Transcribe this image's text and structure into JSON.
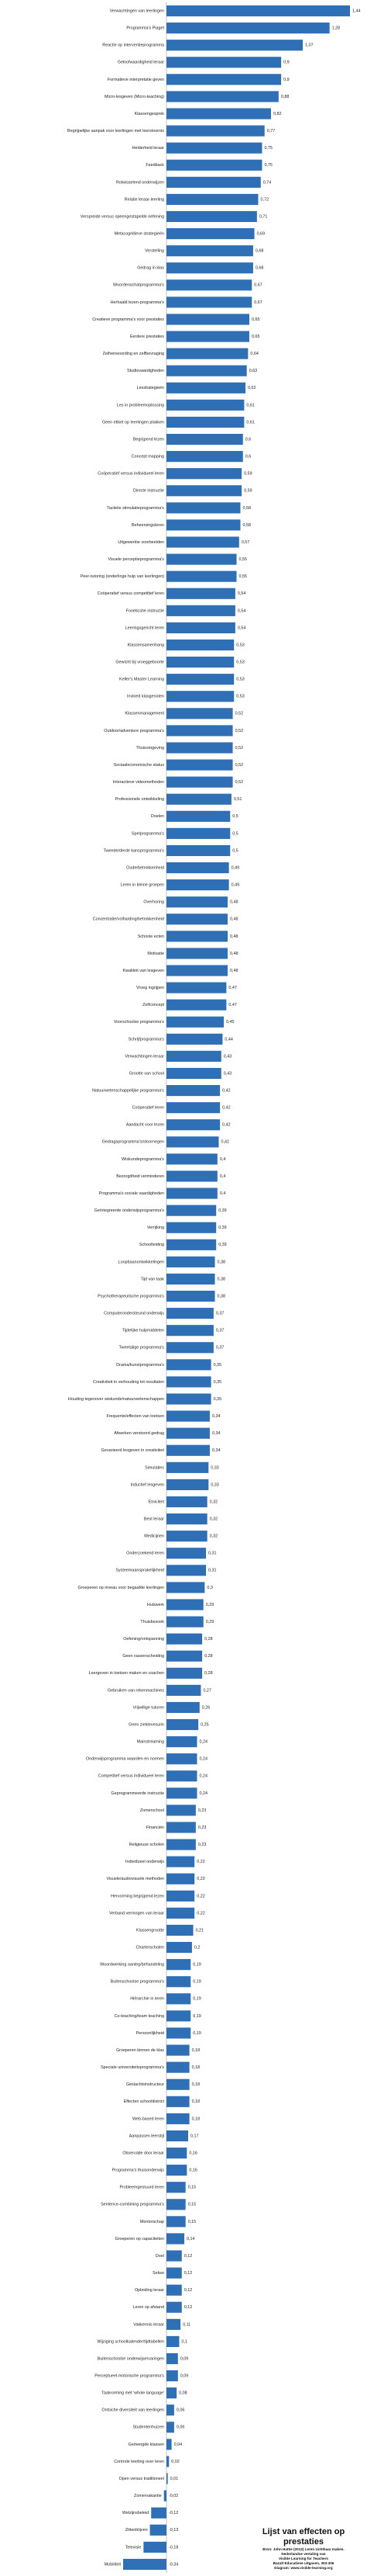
{
  "chart_data": {
    "type": "bar",
    "orientation": "horizontal",
    "categories": [
      "Verwachtingen van leerlingen",
      "Programma's Piaget",
      "Reactie op interventieprogramma",
      "Geloofwaardigheid leraar",
      "Formatieve interpretatie geven",
      "Micro-lesgeven (Micro-teaching)",
      "Klassengesprek",
      "Begrijpelijke aanpak voor leerlingen met leerstoornis",
      "Helderheid leraar",
      "Feedback",
      "Rolwisselend onderwijzen",
      "Relatie leraar-leerling",
      "Verspreide versus opeengestapelde oefening",
      "Metacognitieve strategieën",
      "Verstelling",
      "Gedrag in klas",
      "Woordenschatprogramma's",
      "Herhaald lezen-programma's",
      "Creatieve programma's voor prestaties",
      "Eerdere prestaties",
      "Zelfverwoording en zelfbevraging",
      "Studievaardigheden",
      "Lesstrategieën",
      "Les in probleemoplossing",
      "Geen etiket op leerlingen plakken",
      "Begrijpend lezen",
      "Concept mapping",
      "Coöperatief versus individueel leren",
      "Directe instructie",
      "Tactiele stimulatieprogramma's",
      "Beheersingsleren",
      "Uitgewerkte voorbeelden",
      "Visuele perceptieprogramma's",
      "Peer-tutoring (onderlinge hulp van leerlingen)",
      "Coöperatief versus competitief leren",
      "Foneticshe instructie",
      "Leeringsgericht leren",
      "Klassensamenhang",
      "Gewicht bij vroeggeboorte",
      "Keller's Master Learning",
      "Invloed klasgenoten",
      "Klassenmanagement",
      "Outdoor/adventure programma's",
      "Thuisomgeving",
      "Sociaaleconomische status",
      "Interactieve videomethoden",
      "Professionele ontwikkeling",
      "Doelen",
      "Spelprogramma's",
      "Tweede/derde kansprogramma's",
      "Ouderbetrokkenheid",
      "Leren in kleine groepen",
      "Overhoring",
      "Concentratie/volharding/betrokkenheid",
      "Schoole ecten",
      "Motivatie",
      "Kwaliteit van lesgeven",
      "Vroeg ingrijpen",
      "Zelfconcept",
      "Voorschoolse programma's",
      "Schrijfprogramma's",
      "Verwachtingen leraar",
      "Grootte van school",
      "Natuurwetenschappelijke programma's",
      "Coöperatief leren",
      "Aandacht voor lezen",
      "Gedragsprogramma's/stoornegen",
      "Wiskundeprogramma's",
      "Bezorgdheid verminderen",
      "Programma's sociale vaardigheden",
      "Geïntegreerde onderwijsprogramma's",
      "Verrijking",
      "Schoolleiding",
      "Loopbaanontwikkelingen",
      "Tijd van taak",
      "Psychotherapeutische programma's",
      "Computerondersteund onderwijs",
      "Tijdelijke hulpmiddelen",
      "Tweetalige programma's",
      "Drama/kunstprogramma's",
      "Creativiteit in verhouding tot resultaten",
      "Houding tegenover wiskunde/natuurwetenschappen",
      "Frequente/effecten van toetsen",
      "Afwerken verstoord gedrag",
      "Gevarieerd lesgeven in creativiteit",
      "Simulaties",
      "Inductief lesgeven",
      "Etniciteit",
      "Best leraar",
      "Medicijnen",
      "Onderzoekend leren",
      "Systeemaansprakelijkheid",
      "Groeperen op niveau voor begaafde leerlingen",
      "Huiswerk",
      "Thuisbezoek",
      "Oefening/ontspanning",
      "Geen rassenscheiding",
      "Leergeven in toetsen maken en coachen",
      "Gebruiken van rekenmachines",
      "Vrijwillige tutoren",
      "Geen ziektevesuim",
      "Mainstreaming",
      "Onderwijsprogramma waarden en normen",
      "Competitief versus individueel leren",
      "Geprogrammeerde instructie",
      "Zomerschool",
      "Financiën",
      "Religieuze scholen",
      "Individueel onderwijs",
      "Visuele/audiovisuele methoden",
      "Hervorming begrijpend lezen",
      "Verband vermogen van leraar",
      "Klassengrootte",
      "Charterscholen",
      "Woordwerking aanleg/behandeling",
      "Buitenschoolse programma's",
      "Hiërarchie in leren",
      "Co-teaching/team teaching",
      "Persoonlijkheid",
      "Groeperen binnen de klas",
      "Speciale universiteitsprogramma's",
      "Geslachtsinstructeur",
      "Effecten schooldistrict",
      "Web-based leren",
      "Aanpassen leerstijl",
      "Observatie door leraar",
      "Programma's thuisonderwijs",
      "Probleemgestuurd leren",
      "Sentence-combining programma's",
      "Mentorschap",
      "Groeperen op capaciteiten",
      "Doel",
      "Sekse",
      "Opleiding leraar",
      "Leren op afstand",
      "Vakkennis leraar",
      "Wijziging schoolkalender/tijdtabellen",
      "Buitenschoolse onderwijservaringen",
      "Perceptueel-motorische programma's",
      "Taalvorming met 'whole language'",
      "Ontsiche diversiteit van leerlingen",
      "Studentenhuizen",
      "Gemengde klassen",
      "Controle leerling over leren",
      "Open versus traditioneel",
      "Zomervakantie",
      "Welzijnsbeleid",
      "Zittenblijven",
      "Televisie",
      "Mobiliteit"
    ],
    "values": [
      1.44,
      1.28,
      1.07,
      0.9,
      0.9,
      0.88,
      0.82,
      0.77,
      0.75,
      0.75,
      0.74,
      0.72,
      0.71,
      0.69,
      0.68,
      0.68,
      0.67,
      0.67,
      0.65,
      0.65,
      0.64,
      0.63,
      0.62,
      0.61,
      0.61,
      0.6,
      0.6,
      0.59,
      0.59,
      0.58,
      0.58,
      0.57,
      0.55,
      0.55,
      0.54,
      0.54,
      0.54,
      0.53,
      0.53,
      0.53,
      0.53,
      0.52,
      0.52,
      0.52,
      0.52,
      0.52,
      0.51,
      0.5,
      0.5,
      0.5,
      0.49,
      0.49,
      0.48,
      0.48,
      0.48,
      0.48,
      0.48,
      0.47,
      0.47,
      0.45,
      0.44,
      0.43,
      0.43,
      0.42,
      0.42,
      0.42,
      0.41,
      0.4,
      0.4,
      0.4,
      0.39,
      0.39,
      0.39,
      0.38,
      0.38,
      0.38,
      0.37,
      0.37,
      0.37,
      0.35,
      0.35,
      0.35,
      0.34,
      0.34,
      0.34,
      0.33,
      0.33,
      0.32,
      0.32,
      0.32,
      0.31,
      0.31,
      0.3,
      0.29,
      0.29,
      0.28,
      0.28,
      0.28,
      0.27,
      0.26,
      0.25,
      0.24,
      0.24,
      0.24,
      0.24,
      0.23,
      0.23,
      0.23,
      0.22,
      0.22,
      0.22,
      0.22,
      0.21,
      0.2,
      0.19,
      0.19,
      0.19,
      0.19,
      0.19,
      0.18,
      0.18,
      0.18,
      0.18,
      0.18,
      0.17,
      0.16,
      0.16,
      0.15,
      0.15,
      0.15,
      0.14,
      0.12,
      0.12,
      0.12,
      0.12,
      0.11,
      0.1,
      0.09,
      0.09,
      0.08,
      0.06,
      0.06,
      0.04,
      0.02,
      0.01,
      -0.02,
      -0.12,
      -0.13,
      -0.18,
      -0.34
    ],
    "value_labels": [
      "1,44",
      "1,28",
      "1,07",
      "0,9",
      "0,9",
      "0,88",
      "0,82",
      "0,77",
      "0,75",
      "0,75",
      "0,74",
      "0,72",
      "0,71",
      "0,69",
      "0,68",
      "0,68",
      "0,67",
      "0,67",
      "0,65",
      "0,65",
      "0,64",
      "0,63",
      "0,62",
      "0,61",
      "0,61",
      "0,6",
      "0,6",
      "0,59",
      "0,59",
      "0,58",
      "0,58",
      "0,57",
      "0,55",
      "0,55",
      "0,54",
      "0,54",
      "0,54",
      "0,53",
      "0,53",
      "0,53",
      "0,53",
      "0,52",
      "0,52",
      "0,52",
      "0,52",
      "0,52",
      "0,51",
      "0,5",
      "0,5",
      "0,5",
      "0,49",
      "0,49",
      "0,48",
      "0,48",
      "0,48",
      "0,48",
      "0,48",
      "0,47",
      "0,47",
      "0,45",
      "0,44",
      "0,43",
      "0,43",
      "0,42",
      "0,42",
      "0,42",
      "0,41",
      "0,4",
      "0,4",
      "0,4",
      "0,39",
      "0,39",
      "0,39",
      "0,38",
      "0,38",
      "0,38",
      "0,37",
      "0,37",
      "0,37",
      "0,35",
      "0,35",
      "0,35",
      "0,34",
      "0,34",
      "0,34",
      "0,33",
      "0,33",
      "0,32",
      "0,32",
      "0,32",
      "0,31",
      "0,31",
      "0,3",
      "0,29",
      "0,29",
      "0,28",
      "0,28",
      "0,28",
      "0,27",
      "0,26",
      "0,25",
      "0,24",
      "0,24",
      "0,24",
      "0,24",
      "0,23",
      "0,23",
      "0,23",
      "0,22",
      "0,22",
      "0,22",
      "0,22",
      "0,21",
      "0,2",
      "0,19",
      "0,19",
      "0,19",
      "0,19",
      "0,19",
      "0,18",
      "0,18",
      "0,18",
      "0,18",
      "0,18",
      "0,17",
      "0,16",
      "0,16",
      "0,15",
      "0,15",
      "0,15",
      "0,14",
      "0,12",
      "0,12",
      "0,12",
      "0,12",
      "0,11",
      "0,1",
      "0,09",
      "0,09",
      "0,08",
      "0,06",
      "0,06",
      "0,04",
      "0,02",
      "0,01",
      "-0,02",
      "-0,12",
      "-0,13",
      "-0,18",
      "-0,34"
    ],
    "xlim": [
      -0.36,
      1.5
    ],
    "grid": false,
    "legend": "none",
    "bar_color": "#2f6fb5"
  },
  "caption": {
    "title": "Lijst van effecten op prestaties",
    "lines": [
      "Bron: John Hattie (2013) Leren zichtbaar maken.",
      "Nederlandse vertaling van",
      "Visible Learning for Teachers",
      "Bazalt Educatieve uitgaven, 303-306",
      "Diagram: www.visible-learning.org"
    ]
  }
}
